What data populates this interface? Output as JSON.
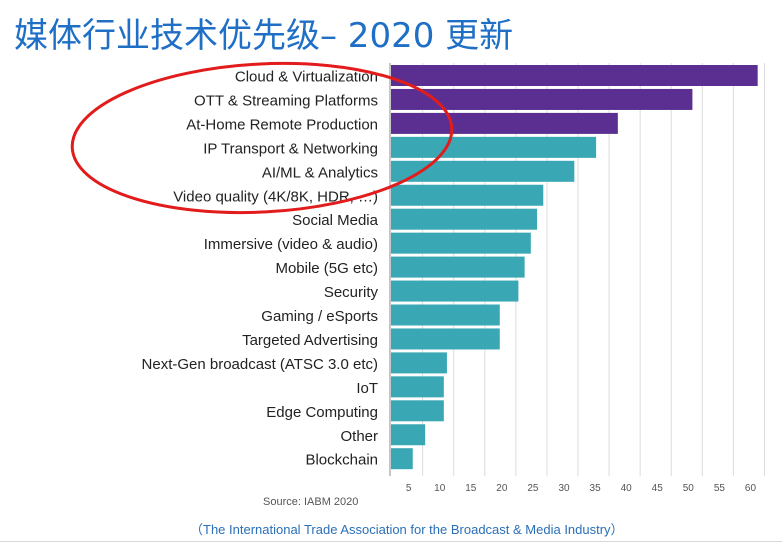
{
  "page": {
    "title": "媒体行业技术优先级– 2020 更新",
    "source": "Source: IABM 2020",
    "footnote": "（The International Trade Association for the Broadcast & Media Industry）"
  },
  "chart_data": {
    "type": "bar",
    "orientation": "horizontal",
    "categories": [
      "Cloud & Virtualization",
      "OTT & Streaming Platforms",
      "At-Home Remote Production",
      "IP Transport & Networking",
      "AI/ML & Analytics",
      "Video quality (4K/8K, HDR, …)",
      "Social Media",
      "Immersive (video & audio)",
      "Mobile (5G etc)",
      "Security",
      "Gaming / eSports",
      "Targeted Advertising",
      "Next-Gen broadcast (ATSC 3.0 etc)",
      "IoT",
      "Edge Computing",
      "Other",
      "Blockchain"
    ],
    "values": [
      61,
      50.5,
      38.5,
      35,
      31.5,
      26.5,
      25.5,
      24.5,
      23.5,
      22.5,
      19.5,
      19.5,
      11,
      10.5,
      10.5,
      7.5,
      5.5
    ],
    "bar_colors": [
      "#5b2f91",
      "#5b2f91",
      "#5b2f91",
      "#3aa7b4",
      "#3aa7b4",
      "#3aa7b4",
      "#3aa7b4",
      "#3aa7b4",
      "#3aa7b4",
      "#3aa7b4",
      "#3aa7b4",
      "#3aa7b4",
      "#3aa7b4",
      "#3aa7b4",
      "#3aa7b4",
      "#3aa7b4",
      "#3aa7b4"
    ],
    "xticks": [
      5,
      10,
      15,
      20,
      25,
      30,
      35,
      40,
      45,
      50,
      55,
      60
    ],
    "xlim": [
      2,
      62.5
    ],
    "grid": true,
    "annotation": "red ellipse highlighting top six categories"
  }
}
